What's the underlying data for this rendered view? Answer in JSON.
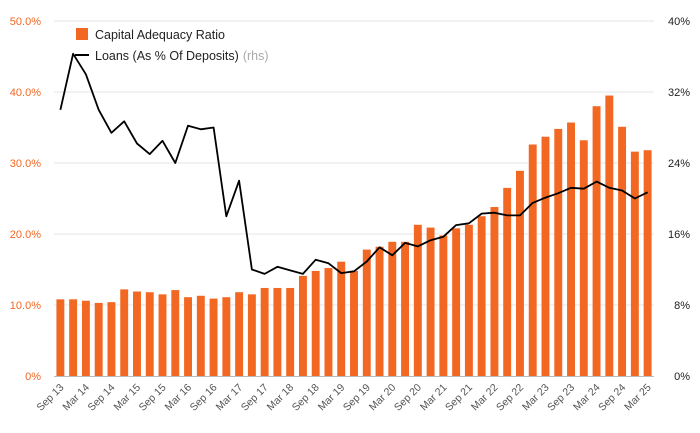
{
  "chart_data": {
    "type": "bar",
    "categories": [
      "Sep 13",
      "Dec 13",
      "Mar 14",
      "Jun 14",
      "Sep 14",
      "Dec 14",
      "Mar 15",
      "Jun 15",
      "Sep 15",
      "Dec 15",
      "Mar 16",
      "Jun 16",
      "Sep 16",
      "Dec 16",
      "Mar 17",
      "Jun 17",
      "Sep 17",
      "Dec 17",
      "Mar 18",
      "Jun 18",
      "Sep 18",
      "Dec 18",
      "Mar 19",
      "Jun 19",
      "Sep 19",
      "Dec 19",
      "Mar 20",
      "Jun 20",
      "Sep 20",
      "Dec 20",
      "Mar 21",
      "Jun 21",
      "Sep 21",
      "Dec 21",
      "Mar 22",
      "Jun 22",
      "Sep 22",
      "Dec 22",
      "Mar 23",
      "Jun 23",
      "Sep 23",
      "Dec 23",
      "Mar 24",
      "Jun 24",
      "Sep 24",
      "Dec 24",
      "Mar 25"
    ],
    "x_tick_labels": [
      "Sep 13",
      "Mar 14",
      "Sep 14",
      "Mar 15",
      "Sep 15",
      "Mar 16",
      "Sep 16",
      "Mar 17",
      "Sep 17",
      "Mar 18",
      "Sep 18",
      "Mar 19",
      "Sep 19",
      "Mar 20",
      "Sep 20",
      "Mar 21",
      "Sep 21",
      "Mar 22",
      "Sep 22",
      "Mar 23",
      "Sep 23",
      "Mar 24",
      "Sep 24",
      "Mar 25"
    ],
    "series": [
      {
        "name": "Capital Adequacy Ratio",
        "type": "bar",
        "axis": "left",
        "color": "#f26722",
        "values": [
          10.8,
          10.8,
          10.6,
          10.3,
          10.4,
          12.2,
          11.9,
          11.8,
          11.5,
          12.1,
          11.1,
          11.3,
          10.9,
          11.1,
          11.8,
          11.5,
          12.4,
          12.4,
          12.4,
          14.1,
          14.8,
          15.2,
          16.1,
          14.8,
          17.8,
          18.2,
          18.9,
          18.9,
          21.3,
          20.9,
          19.8,
          20.8,
          21.3,
          22.5,
          23.8,
          26.5,
          28.9,
          32.6,
          33.7,
          34.8,
          35.7,
          33.2,
          38.0,
          39.5,
          35.1,
          31.6,
          31.8
        ]
      },
      {
        "name": "Loans (As % Of Deposits)",
        "name_suffix": "(rhs)",
        "type": "line",
        "axis": "right",
        "color": "#000000",
        "values": [
          30.0,
          36.3,
          34.0,
          30.0,
          27.4,
          28.7,
          26.2,
          25.0,
          26.5,
          24.0,
          28.2,
          27.8,
          28.0,
          18.0,
          22.0,
          12.0,
          11.5,
          12.3,
          11.9,
          11.5,
          13.1,
          12.7,
          11.6,
          11.8,
          12.9,
          14.5,
          13.6,
          15.0,
          14.6,
          15.3,
          15.7,
          17.0,
          17.2,
          18.3,
          18.4,
          18.1,
          18.1,
          19.5,
          20.1,
          20.6,
          21.2,
          21.1,
          21.9,
          21.2,
          20.9,
          20.0,
          20.7
        ]
      }
    ],
    "y_left": {
      "min": 0,
      "max": 50,
      "tick_values": [
        0,
        10,
        20,
        30,
        40,
        50
      ],
      "tick_labels": [
        "0%",
        "10.0%",
        "20.0%",
        "30.0%",
        "40.0%",
        "50.0%"
      ],
      "color": "#f26722"
    },
    "y_right": {
      "min": 0,
      "max": 40,
      "tick_values": [
        0,
        8,
        16,
        24,
        32,
        40
      ],
      "tick_labels": [
        "0%",
        "8%",
        "16%",
        "24%",
        "32%",
        "40%"
      ],
      "color": "#222222"
    },
    "grid": true,
    "legend_position": "top-left",
    "title": "",
    "xlabel": "",
    "ylabel": ""
  }
}
